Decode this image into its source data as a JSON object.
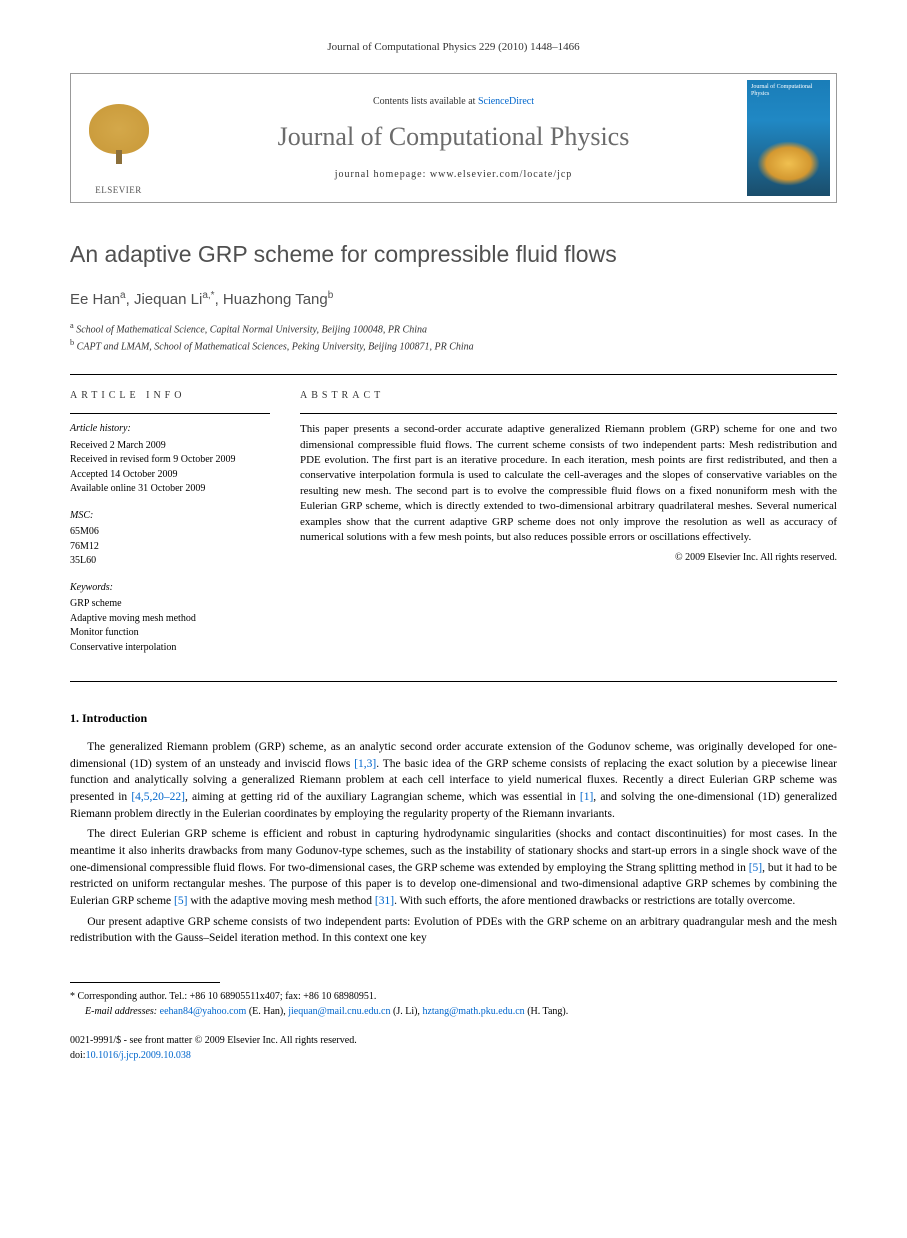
{
  "header": {
    "citation": "Journal of Computational Physics 229 (2010) 1448–1466"
  },
  "banner": {
    "publisher": "ELSEVIER",
    "contents_prefix": "Contents lists available at ",
    "contents_link": "ScienceDirect",
    "journal_name": "Journal of Computational Physics",
    "homepage_prefix": "journal homepage: ",
    "homepage_url": "www.elsevier.com/locate/jcp",
    "cover_title": "Journal of Computational Physics"
  },
  "article": {
    "title": "An adaptive GRP scheme for compressible fluid flows",
    "authors_html": "Ee Han<sup>a</sup>, Jiequan Li<sup>a,*</sup>, Huazhong Tang<sup>b</sup>",
    "affiliations": [
      {
        "sup": "a",
        "text": "School of Mathematical Science, Capital Normal University, Beijing 100048, PR China"
      },
      {
        "sup": "b",
        "text": "CAPT and LMAM, School of Mathematical Sciences, Peking University, Beijing 100871, PR China"
      }
    ]
  },
  "info": {
    "heading": "ARTICLE INFO",
    "history_label": "Article history:",
    "history": [
      "Received 2 March 2009",
      "Received in revised form 9 October 2009",
      "Accepted 14 October 2009",
      "Available online 31 October 2009"
    ],
    "msc_label": "MSC:",
    "msc": [
      "65M06",
      "76M12",
      "35L60"
    ],
    "keywords_label": "Keywords:",
    "keywords": [
      "GRP scheme",
      "Adaptive moving mesh method",
      "Monitor function",
      "Conservative interpolation"
    ]
  },
  "abstract": {
    "heading": "ABSTRACT",
    "text": "This paper presents a second-order accurate adaptive generalized Riemann problem (GRP) scheme for one and two dimensional compressible fluid flows. The current scheme consists of two independent parts: Mesh redistribution and PDE evolution. The first part is an iterative procedure. In each iteration, mesh points are first redistributed, and then a conservative interpolation formula is used to calculate the cell-averages and the slopes of conservative variables on the resulting new mesh. The second part is to evolve the compressible fluid flows on a fixed nonuniform mesh with the Eulerian GRP scheme, which is directly extended to two-dimensional arbitrary quadrilateral meshes. Several numerical examples show that the current adaptive GRP scheme does not only improve the resolution as well as accuracy of numerical solutions with a few mesh points, but also reduces possible errors or oscillations effectively.",
    "copyright": "© 2009 Elsevier Inc. All rights reserved."
  },
  "body": {
    "section_title": "1. Introduction",
    "p1_parts": {
      "a": "The generalized Riemann problem (GRP) scheme, as an analytic second order accurate extension of the Godunov scheme, was originally developed for one-dimensional (1D) system of an unsteady and inviscid flows ",
      "r1": "[1,3]",
      "b": ". The basic idea of the GRP scheme consists of replacing the exact solution by a piecewise linear function and analytically solving a generalized Riemann problem at each cell interface to yield numerical fluxes. Recently a direct Eulerian GRP scheme was presented in ",
      "r2": "[4,5,20–22]",
      "c": ", aiming at getting rid of the auxiliary Lagrangian scheme, which was essential in ",
      "r3": "[1]",
      "d": ", and solving the one-dimensional (1D) generalized Riemann problem directly in the Eulerian coordinates by employing the regularity property of the Riemann invariants."
    },
    "p2_parts": {
      "a": "The direct Eulerian GRP scheme is efficient and robust in capturing hydrodynamic singularities (shocks and contact discontinuities) for most cases. In the meantime it also inherits drawbacks from many Godunov-type schemes, such as the instability of stationary shocks and start-up errors in a single shock wave of the one-dimensional compressible fluid flows. For two-dimensional cases, the GRP scheme was extended by employing the Strang splitting method in ",
      "r1": "[5]",
      "b": ", but it had to be restricted on uniform rectangular meshes. The purpose of this paper is to develop one-dimensional and two-dimensional adaptive GRP schemes by combining the Eulerian GRP scheme ",
      "r2": "[5]",
      "c": " with the adaptive moving mesh method ",
      "r3": "[31]",
      "d": ". With such efforts, the afore mentioned drawbacks or restrictions are totally overcome."
    },
    "p3": "Our present adaptive GRP scheme consists of two independent parts: Evolution of PDEs with the GRP scheme on an arbitrary quadrangular mesh and the mesh redistribution with the Gauss–Seidel iteration method. In this context one key"
  },
  "footnotes": {
    "corr": "* Corresponding author. Tel.: +86 10 68905511x407; fax: +86 10 68980951.",
    "email_label": "E-mail addresses:",
    "emails": [
      {
        "addr": "eehan84@yahoo.com",
        "who": "(E. Han),"
      },
      {
        "addr": "jiequan@mail.cnu.edu.cn",
        "who": "(J. Li),"
      },
      {
        "addr": "hztang@math.pku.edu.cn",
        "who": "(H. Tang)."
      }
    ]
  },
  "bottom": {
    "issn": "0021-9991/$ - see front matter © 2009 Elsevier Inc. All rights reserved.",
    "doi_label": "doi:",
    "doi": "10.1016/j.jcp.2009.10.038"
  },
  "colors": {
    "link": "#0066cc",
    "title_gray": "#505050",
    "text": "#000000"
  }
}
